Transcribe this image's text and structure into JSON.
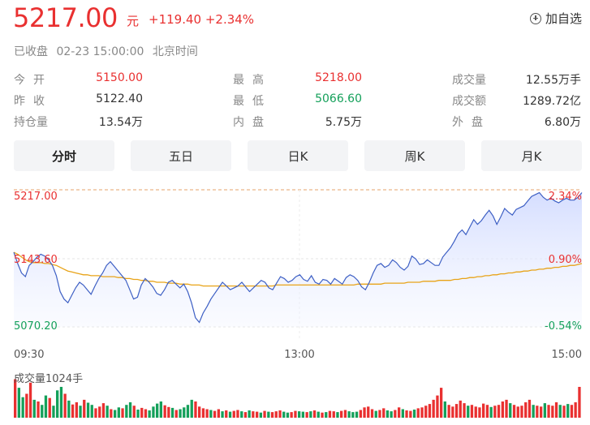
{
  "header": {
    "price": "5217.00",
    "unit": "元",
    "change": "+119.40",
    "change_pct": "+2.34%",
    "add_label": "加自选",
    "status": "已收盘",
    "datetime": "02-23 15:00:00",
    "timezone": "北京时间"
  },
  "quote": {
    "open_label": "今开",
    "open": "5150.00",
    "high_label": "最高",
    "high": "5218.00",
    "volume_label": "成交量",
    "volume": "12.55万手",
    "prev_label": "昨收",
    "prev": "5122.40",
    "low_label": "最低",
    "low": "5066.60",
    "amount_label": "成交额",
    "amount": "1289.72亿",
    "oi_label": "持仓量",
    "oi": "13.54万",
    "inner_label": "内盘",
    "inner": "5.75万",
    "outer_label": "外盘",
    "outer": "6.80万"
  },
  "tabs": [
    "分时",
    "五日",
    "日K",
    "周K",
    "月K"
  ],
  "active_tab": 0,
  "colors": {
    "up": "#e93030",
    "down": "#14a05a",
    "price_line": "#3d5fc4",
    "avg_line": "#e8a317",
    "fill": "#dfe6ff"
  },
  "chart_data": {
    "type": "line",
    "y_left_ticks": [
      "5217.00",
      "5143.60",
      "5070.20"
    ],
    "y_right_ticks": [
      "2.34%",
      "0.90%",
      "-0.54%"
    ],
    "x_ticks": [
      "09:30",
      "13:00",
      "15:00"
    ],
    "ylim": [
      5070.2,
      5217.0
    ],
    "reference": 5143.6,
    "price": [
      5150,
      5138,
      5128,
      5124,
      5136,
      5140,
      5145,
      5148,
      5146,
      5142,
      5136,
      5125,
      5108,
      5100,
      5096,
      5104,
      5112,
      5118,
      5115,
      5110,
      5105,
      5114,
      5122,
      5128,
      5136,
      5140,
      5135,
      5130,
      5125,
      5120,
      5110,
      5100,
      5102,
      5115,
      5122,
      5118,
      5113,
      5106,
      5104,
      5110,
      5118,
      5120,
      5116,
      5112,
      5116,
      5108,
      5096,
      5080,
      5075,
      5085,
      5092,
      5100,
      5106,
      5112,
      5118,
      5114,
      5110,
      5112,
      5114,
      5118,
      5113,
      5108,
      5112,
      5116,
      5120,
      5118,
      5112,
      5110,
      5117,
      5124,
      5122,
      5118,
      5120,
      5124,
      5126,
      5121,
      5119,
      5125,
      5118,
      5116,
      5121,
      5120,
      5116,
      5122,
      5119,
      5116,
      5123,
      5126,
      5124,
      5120,
      5113,
      5110,
      5118,
      5128,
      5136,
      5138,
      5134,
      5136,
      5142,
      5139,
      5134,
      5131,
      5135,
      5146,
      5143,
      5137,
      5138,
      5142,
      5139,
      5136,
      5136,
      5145,
      5150,
      5155,
      5162,
      5170,
      5174,
      5169,
      5177,
      5185,
      5180,
      5184,
      5190,
      5195,
      5189,
      5180,
      5188,
      5197,
      5193,
      5190,
      5196,
      5198,
      5200,
      5205,
      5210,
      5212,
      5214,
      5209,
      5206,
      5208,
      5205,
      5203,
      5206,
      5208,
      5206,
      5206,
      5209,
      5214
    ],
    "avg": [
      5150,
      5148,
      5145,
      5142,
      5140,
      5139,
      5139,
      5139,
      5138,
      5138,
      5137,
      5136,
      5134,
      5132,
      5130,
      5129,
      5128,
      5127,
      5126,
      5126,
      5125,
      5125,
      5125,
      5124,
      5124,
      5124,
      5124,
      5123,
      5123,
      5122,
      5122,
      5121,
      5121,
      5120,
      5120,
      5119,
      5119,
      5118,
      5118,
      5118,
      5117,
      5117,
      5117,
      5116,
      5116,
      5116,
      5115,
      5115,
      5115,
      5114,
      5114,
      5114,
      5114,
      5114,
      5114,
      5114,
      5114,
      5114,
      5114,
      5114,
      5114,
      5114,
      5114,
      5114,
      5114,
      5114,
      5114,
      5114,
      5115,
      5115,
      5115,
      5115,
      5115,
      5115,
      5115,
      5115,
      5115,
      5115,
      5115,
      5115,
      5115,
      5115,
      5115,
      5115,
      5115,
      5115,
      5115,
      5115,
      5115,
      5116,
      5116,
      5116,
      5116,
      5116,
      5116,
      5116,
      5117,
      5117,
      5117,
      5117,
      5117,
      5117,
      5118,
      5118,
      5118,
      5118,
      5119,
      5119,
      5119,
      5119,
      5120,
      5120,
      5120,
      5120,
      5121,
      5121,
      5122,
      5122,
      5123,
      5123,
      5124,
      5124,
      5125,
      5125,
      5126,
      5126,
      5127,
      5127,
      5128,
      5128,
      5129,
      5129,
      5130,
      5130,
      5131,
      5131,
      5132,
      5132,
      5133,
      5133,
      5134,
      5134,
      5135,
      5135,
      5136,
      5136,
      5137,
      5138
    ],
    "volume_label": "成交量1024手",
    "volume_max": 1024,
    "volume": [
      {
        "v": 900,
        "c": "r"
      },
      {
        "v": 700,
        "c": "g"
      },
      {
        "v": 480,
        "c": "g"
      },
      {
        "v": 560,
        "c": "r"
      },
      {
        "v": 820,
        "c": "r"
      },
      {
        "v": 420,
        "c": "g"
      },
      {
        "v": 380,
        "c": "r"
      },
      {
        "v": 300,
        "c": "g"
      },
      {
        "v": 520,
        "c": "g"
      },
      {
        "v": 460,
        "c": "r"
      },
      {
        "v": 280,
        "c": "g"
      },
      {
        "v": 640,
        "c": "g"
      },
      {
        "v": 720,
        "c": "g"
      },
      {
        "v": 560,
        "c": "r"
      },
      {
        "v": 400,
        "c": "g"
      },
      {
        "v": 310,
        "c": "r"
      },
      {
        "v": 360,
        "c": "r"
      },
      {
        "v": 280,
        "c": "g"
      },
      {
        "v": 420,
        "c": "r"
      },
      {
        "v": 350,
        "c": "g"
      },
      {
        "v": 300,
        "c": "g"
      },
      {
        "v": 220,
        "c": "r"
      },
      {
        "v": 260,
        "c": "r"
      },
      {
        "v": 340,
        "c": "r"
      },
      {
        "v": 280,
        "c": "g"
      },
      {
        "v": 200,
        "c": "r"
      },
      {
        "v": 180,
        "c": "g"
      },
      {
        "v": 240,
        "c": "g"
      },
      {
        "v": 220,
        "c": "r"
      },
      {
        "v": 300,
        "c": "g"
      },
      {
        "v": 360,
        "c": "g"
      },
      {
        "v": 280,
        "c": "r"
      },
      {
        "v": 190,
        "c": "g"
      },
      {
        "v": 230,
        "c": "r"
      },
      {
        "v": 200,
        "c": "r"
      },
      {
        "v": 170,
        "c": "g"
      },
      {
        "v": 260,
        "c": "g"
      },
      {
        "v": 330,
        "c": "g"
      },
      {
        "v": 380,
        "c": "g"
      },
      {
        "v": 290,
        "c": "r"
      },
      {
        "v": 250,
        "c": "r"
      },
      {
        "v": 230,
        "c": "g"
      },
      {
        "v": 180,
        "c": "r"
      },
      {
        "v": 200,
        "c": "g"
      },
      {
        "v": 240,
        "c": "g"
      },
      {
        "v": 300,
        "c": "g"
      },
      {
        "v": 420,
        "c": "g"
      },
      {
        "v": 380,
        "c": "r"
      },
      {
        "v": 260,
        "c": "r"
      },
      {
        "v": 220,
        "c": "r"
      },
      {
        "v": 200,
        "c": "r"
      },
      {
        "v": 180,
        "c": "g"
      },
      {
        "v": 160,
        "c": "r"
      },
      {
        "v": 200,
        "c": "r"
      },
      {
        "v": 150,
        "c": "g"
      },
      {
        "v": 170,
        "c": "r"
      },
      {
        "v": 140,
        "c": "g"
      },
      {
        "v": 160,
        "c": "r"
      },
      {
        "v": 180,
        "c": "r"
      },
      {
        "v": 150,
        "c": "g"
      },
      {
        "v": 130,
        "c": "r"
      },
      {
        "v": 170,
        "c": "g"
      },
      {
        "v": 150,
        "c": "r"
      },
      {
        "v": 140,
        "c": "r"
      },
      {
        "v": 120,
        "c": "g"
      },
      {
        "v": 160,
        "c": "r"
      },
      {
        "v": 140,
        "c": "g"
      },
      {
        "v": 130,
        "c": "r"
      },
      {
        "v": 150,
        "c": "r"
      },
      {
        "v": 170,
        "c": "r"
      },
      {
        "v": 140,
        "c": "g"
      },
      {
        "v": 120,
        "c": "g"
      },
      {
        "v": 130,
        "c": "r"
      },
      {
        "v": 160,
        "c": "r"
      },
      {
        "v": 150,
        "c": "g"
      },
      {
        "v": 140,
        "c": "g"
      },
      {
        "v": 130,
        "c": "r"
      },
      {
        "v": 150,
        "c": "g"
      },
      {
        "v": 170,
        "c": "r"
      },
      {
        "v": 140,
        "c": "g"
      },
      {
        "v": 120,
        "c": "r"
      },
      {
        "v": 130,
        "c": "g"
      },
      {
        "v": 160,
        "c": "r"
      },
      {
        "v": 150,
        "c": "r"
      },
      {
        "v": 130,
        "c": "g"
      },
      {
        "v": 160,
        "c": "r"
      },
      {
        "v": 180,
        "c": "r"
      },
      {
        "v": 150,
        "c": "g"
      },
      {
        "v": 130,
        "c": "g"
      },
      {
        "v": 140,
        "c": "g"
      },
      {
        "v": 180,
        "c": "r"
      },
      {
        "v": 240,
        "c": "r"
      },
      {
        "v": 260,
        "c": "r"
      },
      {
        "v": 200,
        "c": "r"
      },
      {
        "v": 160,
        "c": "g"
      },
      {
        "v": 180,
        "c": "r"
      },
      {
        "v": 220,
        "c": "r"
      },
      {
        "v": 170,
        "c": "g"
      },
      {
        "v": 150,
        "c": "g"
      },
      {
        "v": 180,
        "c": "r"
      },
      {
        "v": 240,
        "c": "r"
      },
      {
        "v": 200,
        "c": "g"
      },
      {
        "v": 170,
        "c": "r"
      },
      {
        "v": 160,
        "c": "r"
      },
      {
        "v": 190,
        "c": "g"
      },
      {
        "v": 220,
        "c": "r"
      },
      {
        "v": 240,
        "c": "r"
      },
      {
        "v": 280,
        "c": "r"
      },
      {
        "v": 320,
        "c": "r"
      },
      {
        "v": 420,
        "c": "r"
      },
      {
        "v": 520,
        "c": "r"
      },
      {
        "v": 700,
        "c": "r"
      },
      {
        "v": 380,
        "c": "g"
      },
      {
        "v": 300,
        "c": "r"
      },
      {
        "v": 260,
        "c": "r"
      },
      {
        "v": 320,
        "c": "r"
      },
      {
        "v": 400,
        "c": "r"
      },
      {
        "v": 340,
        "c": "r"
      },
      {
        "v": 280,
        "c": "g"
      },
      {
        "v": 300,
        "c": "r"
      },
      {
        "v": 260,
        "c": "r"
      },
      {
        "v": 240,
        "c": "r"
      },
      {
        "v": 330,
        "c": "r"
      },
      {
        "v": 300,
        "c": "r"
      },
      {
        "v": 250,
        "c": "g"
      },
      {
        "v": 280,
        "c": "r"
      },
      {
        "v": 300,
        "c": "r"
      },
      {
        "v": 380,
        "c": "r"
      },
      {
        "v": 420,
        "c": "r"
      },
      {
        "v": 340,
        "c": "g"
      },
      {
        "v": 300,
        "c": "r"
      },
      {
        "v": 260,
        "c": "r"
      },
      {
        "v": 280,
        "c": "r"
      },
      {
        "v": 360,
        "c": "r"
      },
      {
        "v": 420,
        "c": "r"
      },
      {
        "v": 300,
        "c": "g"
      },
      {
        "v": 280,
        "c": "r"
      },
      {
        "v": 260,
        "c": "r"
      },
      {
        "v": 340,
        "c": "g"
      },
      {
        "v": 300,
        "c": "r"
      },
      {
        "v": 280,
        "c": "r"
      },
      {
        "v": 360,
        "c": "r"
      },
      {
        "v": 300,
        "c": "g"
      },
      {
        "v": 280,
        "c": "r"
      },
      {
        "v": 320,
        "c": "g"
      },
      {
        "v": 300,
        "c": "r"
      },
      {
        "v": 360,
        "c": "r"
      },
      {
        "v": 720,
        "c": "r"
      }
    ]
  }
}
